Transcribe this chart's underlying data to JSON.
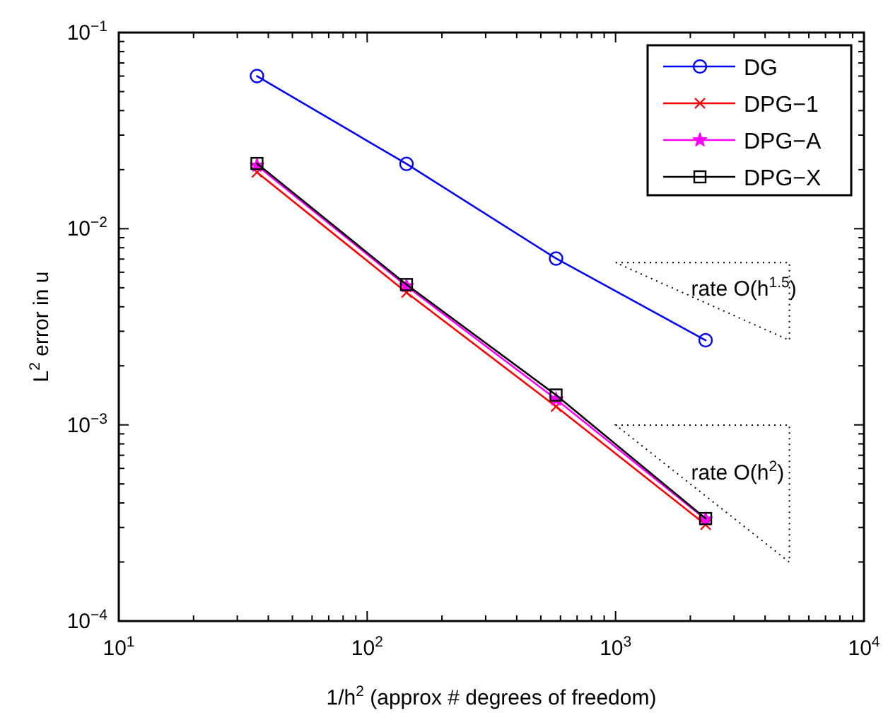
{
  "chart_data": {
    "type": "line",
    "xlabel": "1/h$^{2}$ (approx # degrees of freedom)",
    "ylabel": "L$^{2}$ error in u",
    "log": "xy",
    "grid": false,
    "legend": "top right",
    "line_style": "solid",
    "xlim": [
      10,
      10000
    ],
    "xticks": [
      {
        "value": 10,
        "label": "10$^{1}$"
      },
      {
        "value": 100,
        "label": "10$^{2}$"
      },
      {
        "value": 1000,
        "label": "10$^{3}$"
      },
      {
        "value": 10000,
        "label": "10$^{4}$"
      }
    ],
    "ylim": [
      0.0001,
      0.1
    ],
    "yticks": [
      {
        "value": 0.0001,
        "label": "10$^{−4}$"
      },
      {
        "value": 0.001,
        "label": "10$^{−3}$"
      },
      {
        "value": 0.01,
        "label": "10$^{−2}$"
      },
      {
        "value": 0.1,
        "label": "10$^{−1}$"
      }
    ],
    "x": [
      36,
      144,
      576,
      2304
    ],
    "series": [
      {
        "name": "DG",
        "color": "#0000ff",
        "marker": "circle",
        "values": [
          0.06,
          0.0214,
          0.00705,
          0.0027
        ]
      },
      {
        "name": "DPG−1",
        "color": "#ff0000",
        "marker": "cross",
        "values": [
          0.0194,
          0.00473,
          0.00124,
          0.00031
        ]
      },
      {
        "name": "DPG−A",
        "color": "#ff00ff",
        "marker": "star",
        "values": [
          0.021,
          0.0051,
          0.00135,
          0.00033
        ]
      },
      {
        "name": "DPG−X",
        "color": "#000000",
        "marker": "square",
        "values": [
          0.0215,
          0.00519,
          0.00142,
          0.000333
        ]
      }
    ],
    "annotations": [
      "rate O(h$^{1.5}$)",
      "rate O(h$^{2}$)"
    ]
  }
}
